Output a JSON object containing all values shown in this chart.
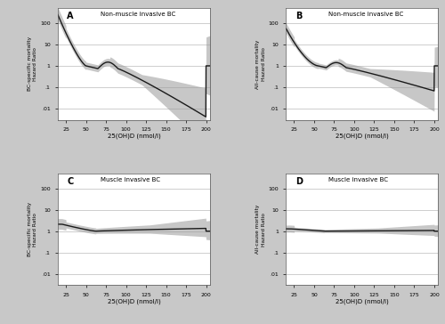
{
  "background_color": "#c8c8c8",
  "panel_bg": "#ffffff",
  "line_color": "#1a1a1a",
  "ci_color": "#999999",
  "ci_alpha": 0.55,
  "x_min": 15,
  "x_max": 205,
  "x_ticks": [
    25,
    50,
    75,
    100,
    125,
    150,
    175,
    200
  ],
  "xlabel": "25(OH)D (nmol/l)",
  "yticks": [
    0.01,
    0.1,
    1,
    10,
    100
  ],
  "ytick_labels": [
    ".01",
    ".1",
    "1",
    "10",
    "100"
  ],
  "ylim": [
    0.003,
    500
  ],
  "panels": [
    {
      "label": "A",
      "title": "Non-muscle invasive BC",
      "ylabel_top": "BC-specific mortality",
      "ylabel_bottom": "Hazard Ratio"
    },
    {
      "label": "B",
      "title": "Non-muscle invasive BC",
      "ylabel_top": "All-cause mortality",
      "ylabel_bottom": "Hazard Ratio"
    },
    {
      "label": "C",
      "title": "Muscle invasive BC",
      "ylabel_top": "BC-specific mortality",
      "ylabel_bottom": "Hazard Ratio"
    },
    {
      "label": "D",
      "title": "Muscle invasive BC",
      "ylabel_top": "All-cause mortality",
      "ylabel_bottom": "Hazard Ratio"
    }
  ]
}
